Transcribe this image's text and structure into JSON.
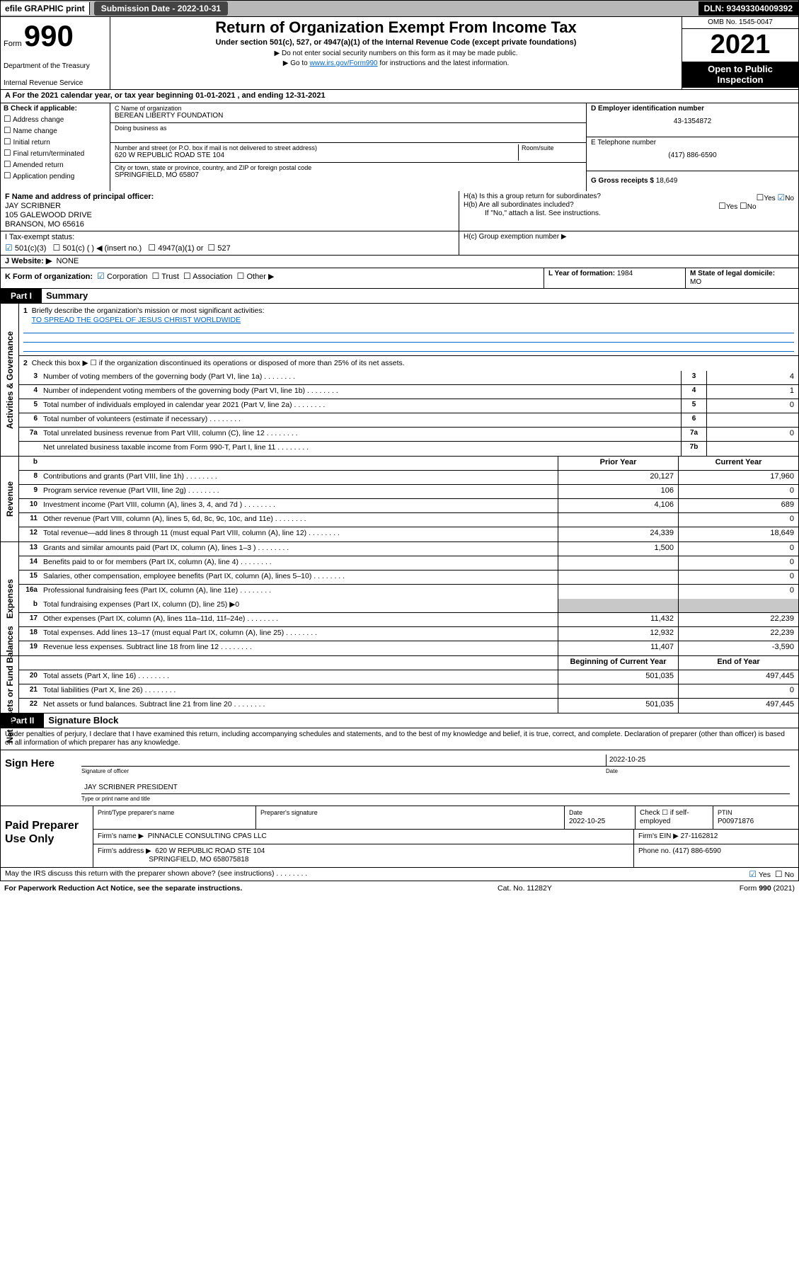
{
  "topbar": {
    "efile": "efile GRAPHIC print",
    "submission_label": "Submission Date - 2022-10-31",
    "dln": "DLN: 93493304009392"
  },
  "header": {
    "form_word": "Form",
    "form_num": "990",
    "dept": "Department of the Treasury",
    "service": "Internal Revenue Service",
    "title": "Return of Organization Exempt From Income Tax",
    "sub": "Under section 501(c), 527, or 4947(a)(1) of the Internal Revenue Code (except private foundations)",
    "note1": "▶ Do not enter social security numbers on this form as it may be made public.",
    "note2_pre": "▶ Go to ",
    "note2_link": "www.irs.gov/Form990",
    "note2_post": " for instructions and the latest information.",
    "omb": "OMB No. 1545-0047",
    "year": "2021",
    "open": "Open to Public Inspection"
  },
  "period": "A For the 2021 calendar year, or tax year beginning 01-01-2021  , and ending 12-31-2021",
  "B": {
    "label": "B Check if applicable:",
    "opts": [
      "Address change",
      "Name change",
      "Initial return",
      "Final return/terminated",
      "Amended return",
      "Application pending"
    ]
  },
  "C": {
    "name_lbl": "C Name of organization",
    "name": "BEREAN LIBERTY FOUNDATION",
    "dba_lbl": "Doing business as",
    "addr_lbl": "Number and street (or P.O. box if mail is not delivered to street address)",
    "room_lbl": "Room/suite",
    "addr": "620 W REPUBLIC ROAD STE 104",
    "city_lbl": "City or town, state or province, country, and ZIP or foreign postal code",
    "city": "SPRINGFIELD, MO  65807"
  },
  "D": {
    "lbl": "D Employer identification number",
    "val": "43-1354872"
  },
  "E": {
    "lbl": "E Telephone number",
    "val": "(417) 886-6590"
  },
  "G": {
    "lbl": "G Gross receipts $",
    "val": "18,649"
  },
  "F": {
    "lbl": "F Name and address of principal officer:",
    "name": "JAY SCRIBNER",
    "addr1": "105 GALEWOOD DRIVE",
    "addr2": "BRANSON, MO  65616"
  },
  "H": {
    "a": "H(a)  Is this a group return for subordinates?",
    "a_yes": "Yes",
    "a_no": "No",
    "b": "H(b)  Are all subordinates included?",
    "b_yes": "Yes",
    "b_no": "No",
    "b_note": "If \"No,\" attach a list. See instructions.",
    "c": "H(c)  Group exemption number ▶"
  },
  "I": {
    "lbl": "I    Tax-exempt status:",
    "o1": "501(c)(3)",
    "o2": "501(c) (  ) ◀ (insert no.)",
    "o3": "4947(a)(1) or",
    "o4": "527"
  },
  "J": {
    "lbl": "J    Website: ▶",
    "val": "NONE"
  },
  "K": {
    "lbl": "K Form of organization:",
    "o1": "Corporation",
    "o2": "Trust",
    "o3": "Association",
    "o4": "Other ▶"
  },
  "L": {
    "lbl": "L Year of formation:",
    "val": "1984"
  },
  "M": {
    "lbl": "M State of legal domicile:",
    "val": "MO"
  },
  "parts": {
    "p1": "Part I",
    "p1t": "Summary",
    "p2": "Part II",
    "p2t": "Signature Block"
  },
  "summary": {
    "q1": "Briefly describe the organization's mission or most significant activities:",
    "mission": "TO SPREAD THE GOSPEL OF JESUS CHRIST WORLDWIDE",
    "q2": "Check this box ▶ ☐  if the organization discontinued its operations or disposed of more than 25% of its net assets.",
    "rows_a": [
      {
        "n": "3",
        "d": "Number of voting members of the governing body (Part VI, line 1a)",
        "box": "3",
        "v": "4"
      },
      {
        "n": "4",
        "d": "Number of independent voting members of the governing body (Part VI, line 1b)",
        "box": "4",
        "v": "1"
      },
      {
        "n": "5",
        "d": "Total number of individuals employed in calendar year 2021 (Part V, line 2a)",
        "box": "5",
        "v": "0"
      },
      {
        "n": "6",
        "d": "Total number of volunteers (estimate if necessary)",
        "box": "6",
        "v": ""
      },
      {
        "n": "7a",
        "d": "Total unrelated business revenue from Part VIII, column (C), line 12",
        "box": "7a",
        "v": "0"
      },
      {
        "n": "",
        "d": "Net unrelated business taxable income from Form 990-T, Part I, line 11",
        "box": "7b",
        "v": ""
      }
    ],
    "colhdr_b": "b",
    "colhdr_prior": "Prior Year",
    "colhdr_curr": "Current Year",
    "rev": [
      {
        "n": "8",
        "d": "Contributions and grants (Part VIII, line 1h)",
        "p": "20,127",
        "c": "17,960"
      },
      {
        "n": "9",
        "d": "Program service revenue (Part VIII, line 2g)",
        "p": "106",
        "c": "0"
      },
      {
        "n": "10",
        "d": "Investment income (Part VIII, column (A), lines 3, 4, and 7d )",
        "p": "4,106",
        "c": "689"
      },
      {
        "n": "11",
        "d": "Other revenue (Part VIII, column (A), lines 5, 6d, 8c, 9c, 10c, and 11e)",
        "p": "",
        "c": "0"
      },
      {
        "n": "12",
        "d": "Total revenue—add lines 8 through 11 (must equal Part VIII, column (A), line 12)",
        "p": "24,339",
        "c": "18,649"
      }
    ],
    "exp": [
      {
        "n": "13",
        "d": "Grants and similar amounts paid (Part IX, column (A), lines 1–3 )",
        "p": "1,500",
        "c": "0"
      },
      {
        "n": "14",
        "d": "Benefits paid to or for members (Part IX, column (A), line 4)",
        "p": "",
        "c": "0"
      },
      {
        "n": "15",
        "d": "Salaries, other compensation, employee benefits (Part IX, column (A), lines 5–10)",
        "p": "",
        "c": "0"
      },
      {
        "n": "16a",
        "d": "Professional fundraising fees (Part IX, column (A), line 11e)",
        "p": "",
        "c": "0"
      }
    ],
    "exp_b": "Total fundraising expenses (Part IX, column (D), line 25) ▶0",
    "exp2": [
      {
        "n": "17",
        "d": "Other expenses (Part IX, column (A), lines 11a–11d, 11f–24e)",
        "p": "11,432",
        "c": "22,239"
      },
      {
        "n": "18",
        "d": "Total expenses. Add lines 13–17 (must equal Part IX, column (A), line 25)",
        "p": "12,932",
        "c": "22,239"
      },
      {
        "n": "19",
        "d": "Revenue less expenses. Subtract line 18 from line 12",
        "p": "11,407",
        "c": "-3,590"
      }
    ],
    "colhdr_beg": "Beginning of Current Year",
    "colhdr_end": "End of Year",
    "net": [
      {
        "n": "20",
        "d": "Total assets (Part X, line 16)",
        "p": "501,035",
        "c": "497,445"
      },
      {
        "n": "21",
        "d": "Total liabilities (Part X, line 26)",
        "p": "",
        "c": "0"
      },
      {
        "n": "22",
        "d": "Net assets or fund balances. Subtract line 21 from line 20",
        "p": "501,035",
        "c": "497,445"
      }
    ],
    "side_ag": "Activities & Governance",
    "side_rev": "Revenue",
    "side_exp": "Expenses",
    "side_net": "Net Assets or Fund Balances"
  },
  "sig": {
    "note": "Under penalties of perjury, I declare that I have examined this return, including accompanying schedules and statements, and to the best of my knowledge and belief, it is true, correct, and complete. Declaration of preparer (other than officer) is based on all information of which preparer has any knowledge.",
    "here": "Sign Here",
    "sig_lbl": "Signature of officer",
    "date_lbl": "Date",
    "date": "2022-10-25",
    "name": "JAY SCRIBNER PRESIDENT",
    "name_lbl": "Type or print name and title"
  },
  "prep": {
    "title": "Paid Preparer Use Only",
    "h1": "Print/Type preparer's name",
    "h2": "Preparer's signature",
    "h3": "Date",
    "h3v": "2022-10-25",
    "h4": "Check ☐ if self-employed",
    "h5": "PTIN",
    "h5v": "P00971876",
    "firm_lbl": "Firm's name    ▶",
    "firm": "PINNACLE CONSULTING CPAS LLC",
    "ein_lbl": "Firm's EIN ▶",
    "ein": "27-1162812",
    "addr_lbl": "Firm's address ▶",
    "addr1": "620 W REPUBLIC ROAD STE 104",
    "addr2": "SPRINGFIELD, MO  658075818",
    "phone_lbl": "Phone no.",
    "phone": "(417) 886-6590"
  },
  "may": {
    "txt": "May the IRS discuss this return with the preparer shown above? (see instructions)",
    "yes": "Yes",
    "no": "No"
  },
  "foot": {
    "a": "For Paperwork Reduction Act Notice, see the separate instructions.",
    "b": "Cat. No. 11282Y",
    "c": "Form 990 (2021)"
  },
  "colors": {
    "link": "#0066cc",
    "check": "#0a62a9",
    "grey": "#c8c8c8",
    "topbar": "#b8b8b8"
  }
}
